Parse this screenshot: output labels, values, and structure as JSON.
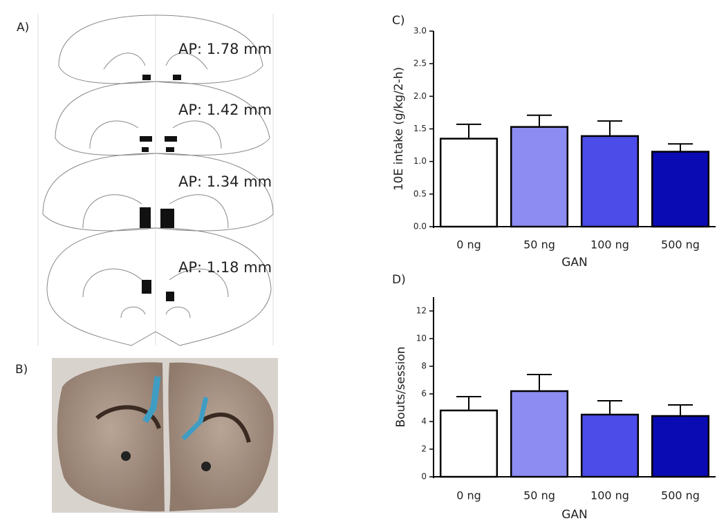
{
  "panels": {
    "A": {
      "label": "A)",
      "sections": [
        "AP: 1.78 mm",
        "AP: 1.42 mm",
        "AP: 1.34 mm",
        "AP: 1.18 mm"
      ]
    },
    "B": {
      "label": "B)"
    }
  },
  "chart_data": [
    {
      "type": "bar",
      "panel": "C)",
      "ylabel": "10E intake (g/kg/2-h)",
      "xlabel": "GAN",
      "categories": [
        "0 ng",
        "50 ng",
        "100 ng",
        "500 ng"
      ],
      "values": [
        1.35,
        1.53,
        1.39,
        1.15
      ],
      "errors": [
        0.22,
        0.18,
        0.23,
        0.12
      ],
      "colors": [
        "#ffffff",
        "#8c8cf2",
        "#4c4ce8",
        "#0b0bb4"
      ],
      "ylim": [
        0,
        3
      ],
      "yticks": [
        {
          "value": 0,
          "label": "0.0"
        },
        {
          "value": 0.5,
          "label": "0.5"
        },
        {
          "value": 1,
          "label": "1.0"
        },
        {
          "value": 1.5,
          "label": "1.5"
        },
        {
          "value": 2,
          "label": "2.0"
        },
        {
          "value": 2.5,
          "label": "2.5"
        },
        {
          "value": 3,
          "label": "3.0"
        }
      ]
    },
    {
      "type": "bar",
      "panel": "D)",
      "ylabel": "Bouts/session",
      "xlabel": "GAN",
      "categories": [
        "0 ng",
        "50 ng",
        "100 ng",
        "500 ng"
      ],
      "values": [
        4.8,
        6.2,
        4.5,
        4.4
      ],
      "errors": [
        1.0,
        1.2,
        1.0,
        0.8
      ],
      "colors": [
        "#ffffff",
        "#8c8cf2",
        "#4c4ce8",
        "#0b0bb4"
      ],
      "ylim": [
        0,
        13
      ],
      "yticks": [
        0,
        2,
        4,
        6,
        8,
        10,
        12
      ]
    }
  ]
}
